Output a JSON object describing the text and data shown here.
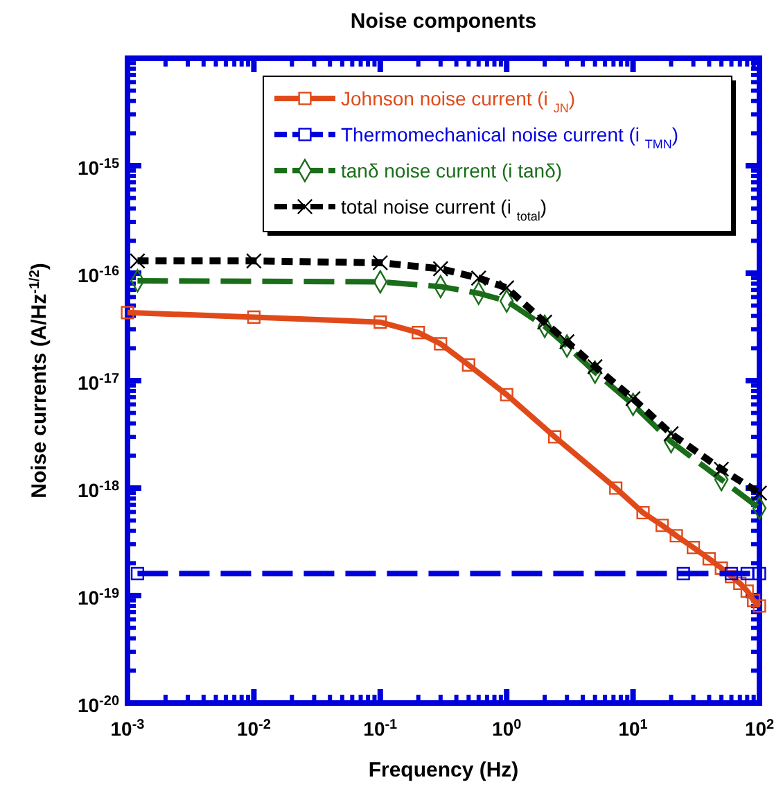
{
  "chart_data": {
    "type": "line",
    "title": "Noise components",
    "xlabel": "Frequency (Hz)",
    "ylabel": "Noise currents (A/Hz$^{-1/2}$)",
    "log": "xy",
    "xlim": [
      0.001,
      100
    ],
    "ylim": [
      1e-20,
      1e-14
    ],
    "xticks": [
      {
        "value": 0.001,
        "label": "10$^{-3}$"
      },
      {
        "value": 0.01,
        "label": "10$^{-2}$"
      },
      {
        "value": 0.1,
        "label": "10$^{-1}$"
      },
      {
        "value": 1,
        "label": "10$^{0}$"
      },
      {
        "value": 10,
        "label": "10$^{1}$"
      },
      {
        "value": 100,
        "label": "10$^{2}$"
      }
    ],
    "yticks": [
      {
        "value": 1e-20,
        "label": "10$^{-20}$"
      },
      {
        "value": 1e-19,
        "label": "10$^{-19}$"
      },
      {
        "value": 1e-18,
        "label": "10$^{-18}$"
      },
      {
        "value": 1e-17,
        "label": "10$^{-17}$"
      },
      {
        "value": 1e-16,
        "label": "10$^{-16}$"
      },
      {
        "value": 1e-15,
        "label": "10$^{-15}$"
      },
      {
        "value": 1e-14,
        "label": null
      }
    ],
    "legend": "top right",
    "series": [
      {
        "name": "Johnson noise current (i $_{JN}$)",
        "color": "#e04a1a",
        "marker": "square",
        "line_style": "solid",
        "x": [
          0.001,
          0.01,
          0.1,
          0.2,
          0.3,
          0.5,
          1,
          2.4,
          7.3,
          12,
          17,
          22,
          30,
          40,
          50,
          60,
          70,
          80,
          90,
          100
        ],
        "values": [
          4.3e-17,
          3.9e-17,
          3.5e-17,
          2.8e-17,
          2.2e-17,
          1.4e-17,
          7.4e-18,
          3e-18,
          1e-18,
          5.9e-19,
          4.5e-19,
          3.6e-19,
          2.8e-19,
          2.2e-19,
          1.8e-19,
          1.5e-19,
          1.3e-19,
          1.1e-19,
          9e-20,
          8e-20
        ]
      },
      {
        "name": "Thermomechanical noise current (i $_{TMN}$)",
        "color": "#0000dd",
        "marker": "square",
        "line_style": "dashed",
        "x": [
          0.0012,
          25,
          60,
          80,
          100
        ],
        "values": [
          1.6e-19,
          1.6e-19,
          1.6e-19,
          1.6e-19,
          1.6e-19
        ]
      },
      {
        "name": "tanδ noise current (i tanδ)",
        "color": "#1a6e1a",
        "marker": "diamond",
        "line_style": "dashed",
        "x": [
          0.0012,
          0.1,
          0.3,
          0.6,
          1,
          2,
          3,
          5,
          10,
          20,
          50,
          100
        ],
        "values": [
          8.5e-17,
          8.3e-17,
          7.5e-17,
          6.5e-17,
          5.5e-17,
          3.2e-17,
          2.1e-17,
          1.2e-17,
          6e-18,
          2.7e-18,
          1.2e-18,
          6.5e-19
        ]
      },
      {
        "name": "total noise current (i $_{total}$)",
        "color": "#000000",
        "marker": "cross",
        "line_style": "dotted",
        "x": [
          0.0012,
          0.01,
          0.1,
          0.3,
          0.6,
          1,
          2,
          3,
          5,
          10,
          20,
          50,
          100
        ],
        "values": [
          1.3e-16,
          1.3e-16,
          1.25e-16,
          1.1e-16,
          9e-17,
          7.3e-17,
          3.5e-17,
          2.3e-17,
          1.35e-17,
          6.8e-18,
          3.2e-18,
          1.5e-18,
          9e-19
        ]
      }
    ]
  }
}
